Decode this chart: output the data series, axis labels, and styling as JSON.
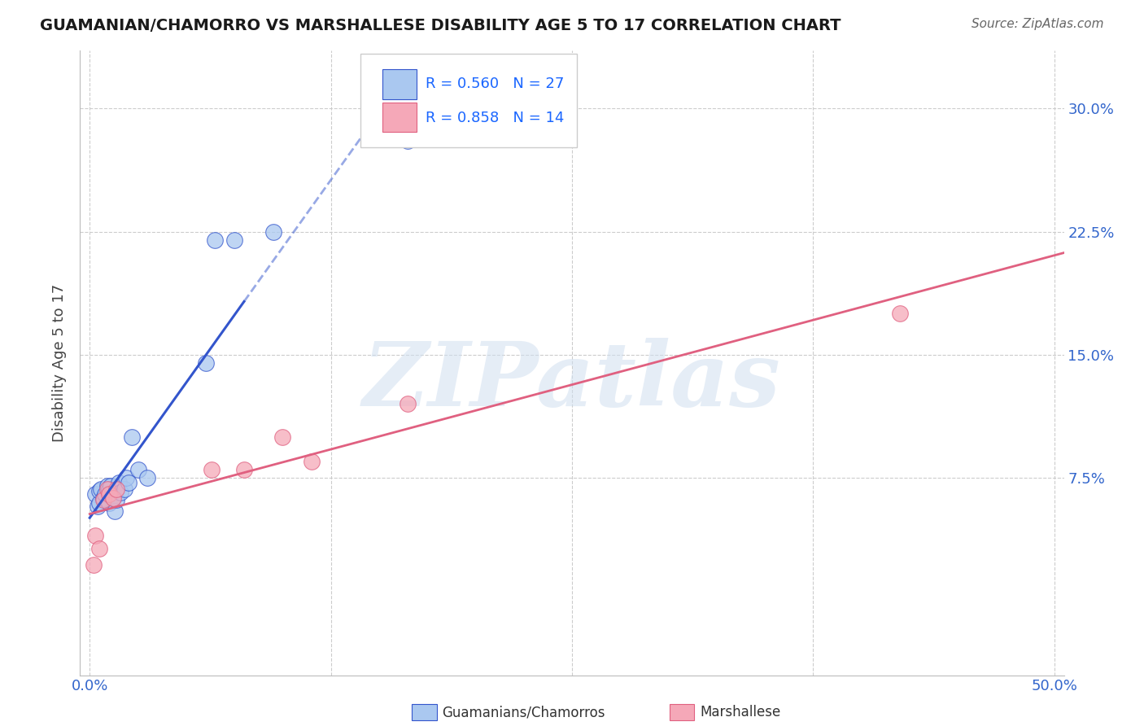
{
  "title": "GUAMANIAN/CHAMORRO VS MARSHALLESE DISABILITY AGE 5 TO 17 CORRELATION CHART",
  "source": "Source: ZipAtlas.com",
  "ylabel": "Disability Age 5 to 17",
  "xlim": [
    -0.005,
    0.505
  ],
  "ylim": [
    -0.045,
    0.335
  ],
  "xticks": [
    0.0,
    0.125,
    0.25,
    0.375,
    0.5
  ],
  "xtick_labels": [
    "0.0%",
    "",
    "",
    "",
    "50.0%"
  ],
  "ytick_positions": [
    0.075,
    0.15,
    0.225,
    0.3
  ],
  "ytick_labels": [
    "7.5%",
    "15.0%",
    "22.5%",
    "30.0%"
  ],
  "blue_R": 0.56,
  "blue_N": 27,
  "pink_R": 0.858,
  "pink_N": 14,
  "blue_color": "#aac8f0",
  "pink_color": "#f5a8b8",
  "blue_line_color": "#3355cc",
  "pink_line_color": "#e06080",
  "blue_scatter_x": [
    0.003,
    0.004,
    0.005,
    0.005,
    0.006,
    0.007,
    0.008,
    0.009,
    0.01,
    0.01,
    0.011,
    0.012,
    0.013,
    0.014,
    0.015,
    0.016,
    0.018,
    0.019,
    0.02,
    0.022,
    0.025,
    0.03,
    0.06,
    0.065,
    0.075,
    0.095,
    0.165
  ],
  "blue_scatter_y": [
    0.065,
    0.058,
    0.06,
    0.067,
    0.068,
    0.063,
    0.065,
    0.07,
    0.06,
    0.068,
    0.07,
    0.063,
    0.055,
    0.062,
    0.072,
    0.066,
    0.068,
    0.075,
    0.072,
    0.1,
    0.08,
    0.075,
    0.145,
    0.22,
    0.22,
    0.225,
    0.28
  ],
  "pink_scatter_x": [
    0.002,
    0.003,
    0.005,
    0.007,
    0.009,
    0.01,
    0.012,
    0.014,
    0.063,
    0.08,
    0.1,
    0.115,
    0.165,
    0.42
  ],
  "pink_scatter_y": [
    0.022,
    0.04,
    0.032,
    0.062,
    0.068,
    0.065,
    0.063,
    0.068,
    0.08,
    0.08,
    0.1,
    0.085,
    0.12,
    0.175
  ],
  "watermark_text": "ZIPatlas",
  "background_color": "#ffffff",
  "grid_color": "#cccccc",
  "title_color": "#1a1a1a",
  "axis_tick_color": "#3366cc",
  "legend_text_color": "#1a66ff"
}
